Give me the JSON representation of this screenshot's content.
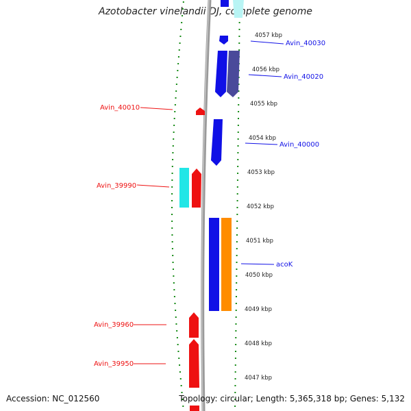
{
  "title": "Azotobacter vinelandii DJ, complete genome",
  "footer": {
    "accession": "Accession: NC_012560",
    "summary": "Topology: circular; Length: 5,365,318 bp; Genes: 5,132"
  },
  "colors": {
    "forward_gene": "#1010e6",
    "reverse_gene": "#ee1111",
    "cyan_feature": "#22e6e6",
    "orange_feature": "#ff8c00",
    "purple_feature": "#4a4a9a",
    "backbone": "#888888",
    "tick": "#118811"
  },
  "scale_ticks": [
    {
      "label": "4057 kbp",
      "kbp": 4057
    },
    {
      "label": "4056 kbp",
      "kbp": 4056
    },
    {
      "label": "4055 kbp",
      "kbp": 4055
    },
    {
      "label": "4054 kbp",
      "kbp": 4054
    },
    {
      "label": "4053 kbp",
      "kbp": 4053
    },
    {
      "label": "4052 kbp",
      "kbp": 4052
    },
    {
      "label": "4051 kbp",
      "kbp": 4051
    },
    {
      "label": "4050 kbp",
      "kbp": 4050
    },
    {
      "label": "4049 kbp",
      "kbp": 4049
    },
    {
      "label": "4048 kbp",
      "kbp": 4048
    },
    {
      "label": "4047 kbp",
      "kbp": 4047
    }
  ],
  "gene_labels": {
    "avin_40030": "Avin_40030",
    "avin_40020": "Avin_40020",
    "avin_40010": "Avin_40010",
    "avin_40000": "Avin_40000",
    "avin_39990": "Avin_39990",
    "acok": "acoK",
    "avin_39960": "Avin_39960",
    "avin_39950": "Avin_39950"
  }
}
